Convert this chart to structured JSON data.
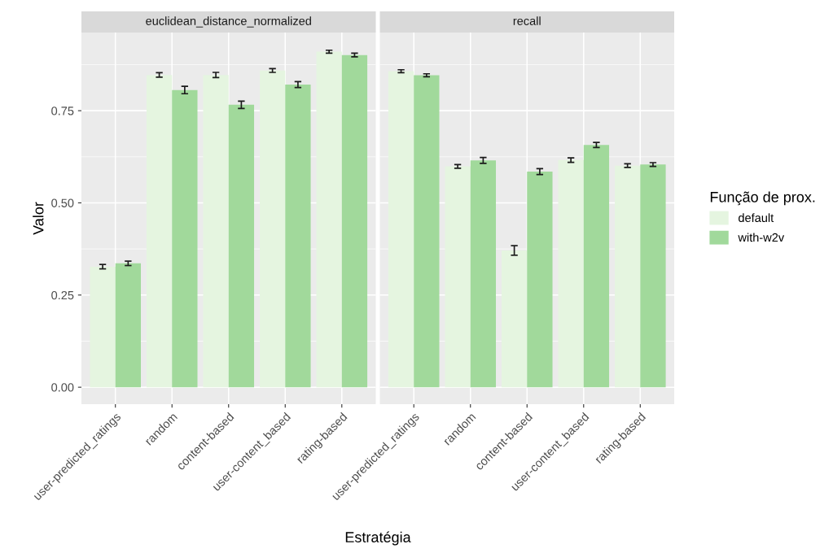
{
  "chart_data": [
    {
      "type": "bar",
      "title": "euclidean_distance_normalized",
      "xlabel": "Estratégia",
      "ylabel": "Valor",
      "categories": [
        "user-predicted_ratings",
        "random",
        "content-based",
        "user-content_based",
        "rating-based"
      ],
      "series": [
        {
          "name": "default",
          "color": "#e5f5e0",
          "values": [
            0.327,
            0.847,
            0.847,
            0.859,
            0.91
          ],
          "errors": [
            0.006,
            0.006,
            0.007,
            0.005,
            0.004
          ]
        },
        {
          "name": "with-w2v",
          "color": "#a1d99b",
          "values": [
            0.336,
            0.806,
            0.766,
            0.821,
            0.901
          ],
          "errors": [
            0.006,
            0.01,
            0.01,
            0.008,
            0.005
          ]
        }
      ],
      "ylim": [
        -0.046,
        0.962
      ],
      "yticks": [
        {
          "value": 0,
          "label": "0.00"
        },
        0.25,
        {
          "value": 0.5,
          "label": "0.50"
        },
        0.75
      ],
      "grid": true,
      "legend": "right",
      "legend_title": "Função de prox."
    },
    {
      "type": "bar",
      "title": "recall",
      "categories": [
        "user-predicted_ratings",
        "random",
        "content-based",
        "user-content_based",
        "rating-based"
      ],
      "series": [
        {
          "color": "#e5f5e0",
          "values": [
            0.857,
            0.599,
            0.371,
            0.616,
            0.601
          ],
          "errors": [
            0.004,
            0.005,
            0.013,
            0.006,
            0.005
          ]
        },
        {
          "color": "#a1d99b",
          "values": [
            0.846,
            0.615,
            0.585,
            0.657,
            0.604
          ],
          "errors": [
            0.004,
            0.008,
            0.008,
            0.007,
            0.005
          ]
        }
      ],
      "ylim": [
        -0.046,
        0.962
      ],
      "yticks": [
        0,
        0.25,
        0.5,
        0.75
      ],
      "tick_labels": "x",
      "grid": true
    }
  ]
}
